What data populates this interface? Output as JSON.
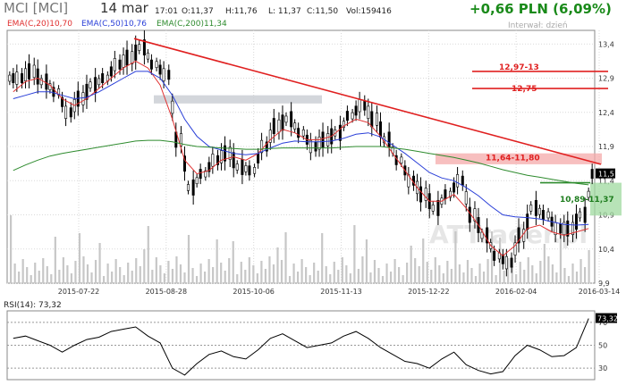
{
  "header": {
    "ticker": "MCI [MCI]",
    "date": "14 mar",
    "time": "17:01",
    "open": "O:11,37",
    "high": "H:11,76",
    "low": "L: 11,37",
    "close": "C:11,50",
    "volume": "Vol:159416",
    "change": "+0,66 PLN (6,09%)",
    "interval": "Interwał: dzień",
    "ema20": "EMA(C,20)10,70",
    "ema50": "EMA(C,50)10,76",
    "ema200": "EMA(C,200)11,34",
    "rsi_label": "RSI(14): 73,32"
  },
  "colors": {
    "up": "#1a8a1a",
    "ema20": "#e03030",
    "ema50": "#2a3fd8",
    "ema200": "#2e8b2e",
    "trend": "#e02020",
    "resistance_zone": "#f4a9a9",
    "support_zone": "#9fd99f",
    "gap_zone": "#c8ccd2",
    "volume": "#c7c7c7"
  },
  "watermark": "ATTrader.pl",
  "annotations": {
    "resistance_1": "12,97-13",
    "resistance_2": "12,75",
    "resistance_zone": "11,64-11,80",
    "support_zone": "10,89-11,37",
    "last_price": "11,5"
  },
  "chart_data": [
    {
      "type": "line",
      "title": "MCI [MCI]",
      "ylim": [
        9.9,
        13.6
      ],
      "y_ticks": [
        "13,4",
        "12,9",
        "12,4",
        "11,9",
        "11,4",
        "10,9",
        "10,4",
        "9,9"
      ],
      "x_tick_labels": [
        "2015-07-22",
        "2015-08-28",
        "2015-10-06",
        "2015-11-13",
        "2015-12-22",
        "2016-02-04",
        "2016-03-14"
      ],
      "candles_approx_close": [
        12.9,
        13.0,
        12.85,
        12.7,
        12.4,
        12.6,
        12.8,
        12.9,
        13.1,
        13.2,
        13.35,
        13.1,
        12.95,
        12.0,
        11.3,
        11.5,
        11.7,
        11.8,
        11.6,
        11.55,
        11.9,
        12.2,
        12.3,
        12.1,
        11.9,
        12.0,
        12.1,
        12.35,
        12.5,
        12.3,
        12.0,
        11.7,
        11.4,
        11.2,
        11.0,
        11.2,
        11.4,
        10.9,
        10.6,
        10.3,
        10.2,
        10.6,
        11.0,
        10.9,
        10.7,
        10.7,
        10.9,
        11.5
      ],
      "series": [
        {
          "name": "EMA(C,20)",
          "values": [
            12.7,
            12.85,
            12.9,
            12.8,
            12.6,
            12.5,
            12.6,
            12.75,
            12.9,
            13.05,
            13.15,
            13.05,
            12.8,
            12.3,
            11.7,
            11.5,
            11.55,
            11.7,
            11.75,
            11.7,
            11.8,
            12.0,
            12.15,
            12.1,
            12.0,
            12.0,
            12.05,
            12.2,
            12.3,
            12.25,
            12.05,
            11.8,
            11.55,
            11.3,
            11.1,
            11.1,
            11.2,
            11.0,
            10.75,
            10.45,
            10.3,
            10.45,
            10.7,
            10.75,
            10.65,
            10.6,
            10.65,
            10.7
          ]
        },
        {
          "name": "EMA(C,50)",
          "values": [
            12.6,
            12.65,
            12.7,
            12.7,
            12.65,
            12.6,
            12.62,
            12.7,
            12.8,
            12.9,
            13.0,
            13.0,
            12.9,
            12.65,
            12.3,
            12.05,
            11.9,
            11.85,
            11.8,
            11.78,
            11.8,
            11.88,
            11.95,
            11.98,
            11.97,
            11.97,
            11.98,
            12.02,
            12.08,
            12.1,
            12.04,
            11.92,
            11.8,
            11.66,
            11.52,
            11.44,
            11.4,
            11.3,
            11.18,
            11.03,
            10.9,
            10.87,
            10.86,
            10.84,
            10.8,
            10.76,
            10.75,
            10.76
          ]
        },
        {
          "name": "EMA(C,200)",
          "values": [
            11.55,
            11.63,
            11.7,
            11.76,
            11.8,
            11.83,
            11.86,
            11.89,
            11.92,
            11.95,
            11.98,
            11.99,
            11.99,
            11.97,
            11.93,
            11.9,
            11.89,
            11.88,
            11.87,
            11.86,
            11.86,
            11.87,
            11.88,
            11.88,
            11.88,
            11.88,
            11.88,
            11.89,
            11.9,
            11.9,
            11.9,
            11.88,
            11.86,
            11.83,
            11.8,
            11.77,
            11.74,
            11.7,
            11.66,
            11.61,
            11.56,
            11.52,
            11.48,
            11.45,
            11.42,
            11.39,
            11.36,
            11.34
          ]
        },
        {
          "name": "Trend",
          "values": [
            13.48,
            11.64
          ]
        }
      ]
    },
    {
      "type": "line",
      "title": "RSI(14): 73,32",
      "ylim": [
        20,
        80
      ],
      "y_ticks": [
        "70",
        "50",
        "30"
      ],
      "series": [
        {
          "name": "RSI(14)",
          "values": [
            56,
            58,
            54,
            50,
            44,
            50,
            55,
            57,
            62,
            64,
            66,
            58,
            52,
            30,
            24,
            34,
            42,
            45,
            40,
            38,
            46,
            56,
            60,
            54,
            48,
            50,
            52,
            58,
            62,
            56,
            48,
            42,
            36,
            34,
            30,
            38,
            44,
            33,
            28,
            25,
            27,
            41,
            50,
            46,
            40,
            41,
            48,
            73.32
          ]
        }
      ]
    }
  ]
}
